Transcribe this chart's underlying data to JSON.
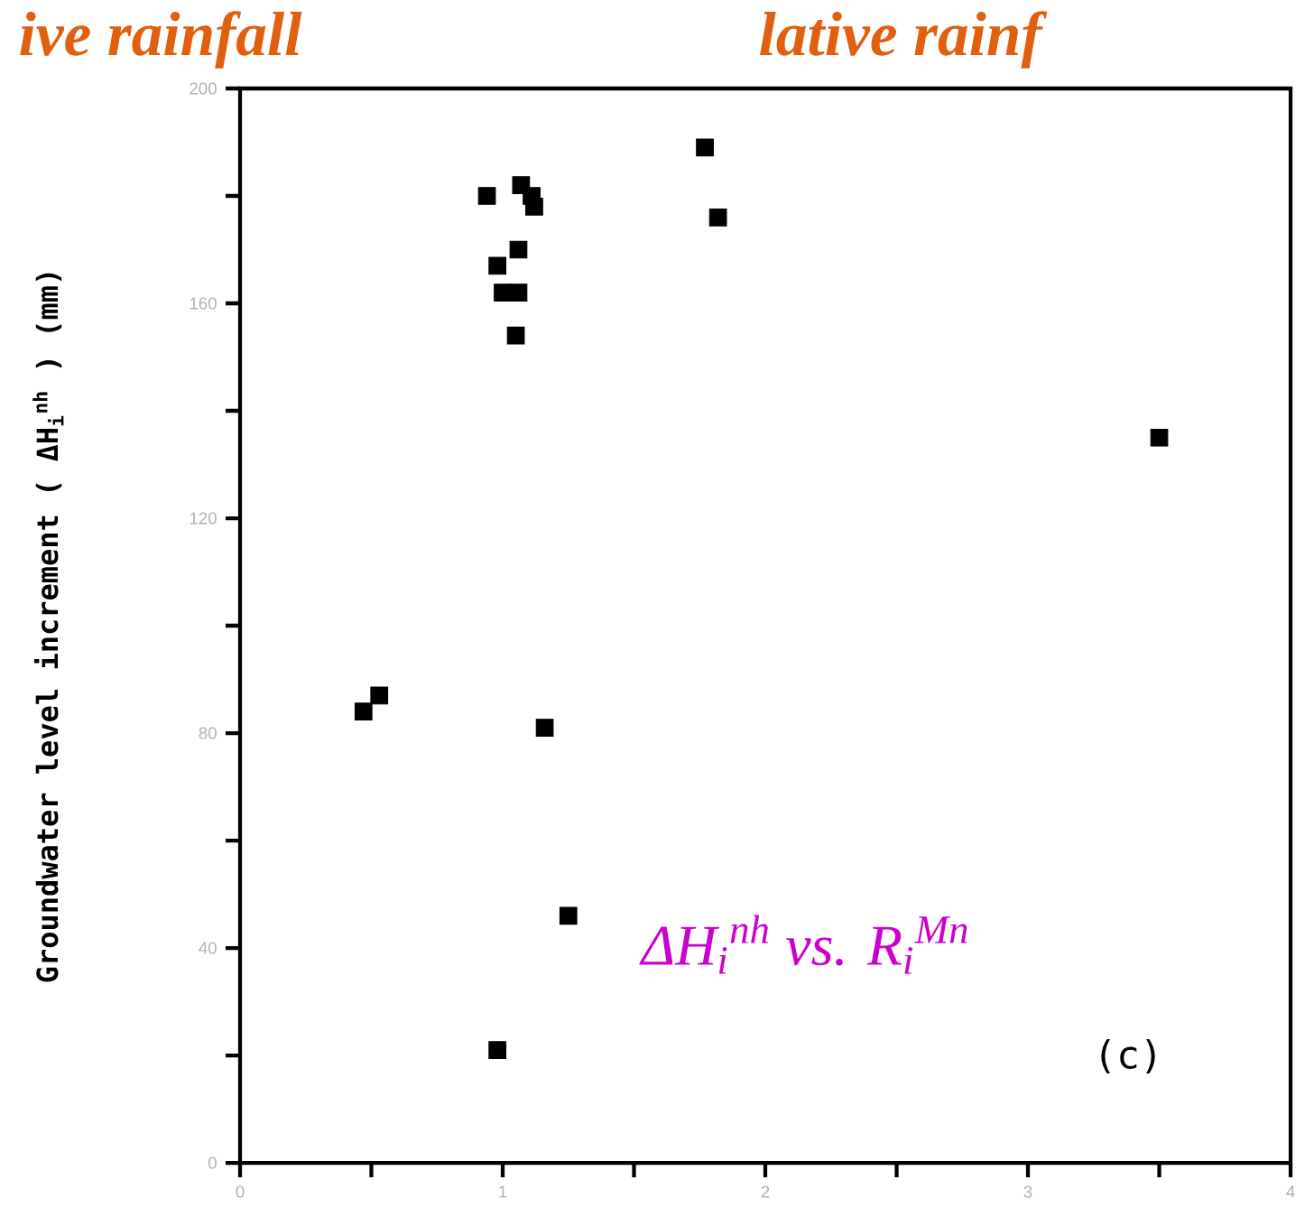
{
  "chart_data": {
    "type": "scatter",
    "ylabel": "Groundwater level increment ( ΔH$_{i}$$^{nh}$ ) (mm)",
    "annotations": [
      "ive rainfall",
      "lative rainf",
      "ΔH$_{i}$$^{nh}$   vs.   R$_{i}$$^{Mn}$",
      "(c)"
    ],
    "x": [
      0.94,
      1.07,
      1.11,
      1.12,
      1.06,
      0.98,
      1.0,
      1.06,
      1.05,
      1.77,
      1.82,
      3.5,
      0.53,
      0.47,
      1.16,
      1.25,
      0.98
    ],
    "values": [
      180,
      182,
      180,
      178,
      170,
      167,
      162,
      162,
      154,
      189,
      176,
      135,
      87,
      84,
      81,
      46,
      21
    ],
    "color": "#000000",
    "marker": "square",
    "xlim": [
      0,
      4
    ],
    "xticks": [
      0,
      1,
      2,
      3,
      4
    ],
    "ylim": [
      0,
      200
    ],
    "yticks": [
      0,
      40,
      80,
      120,
      160,
      200
    ]
  }
}
